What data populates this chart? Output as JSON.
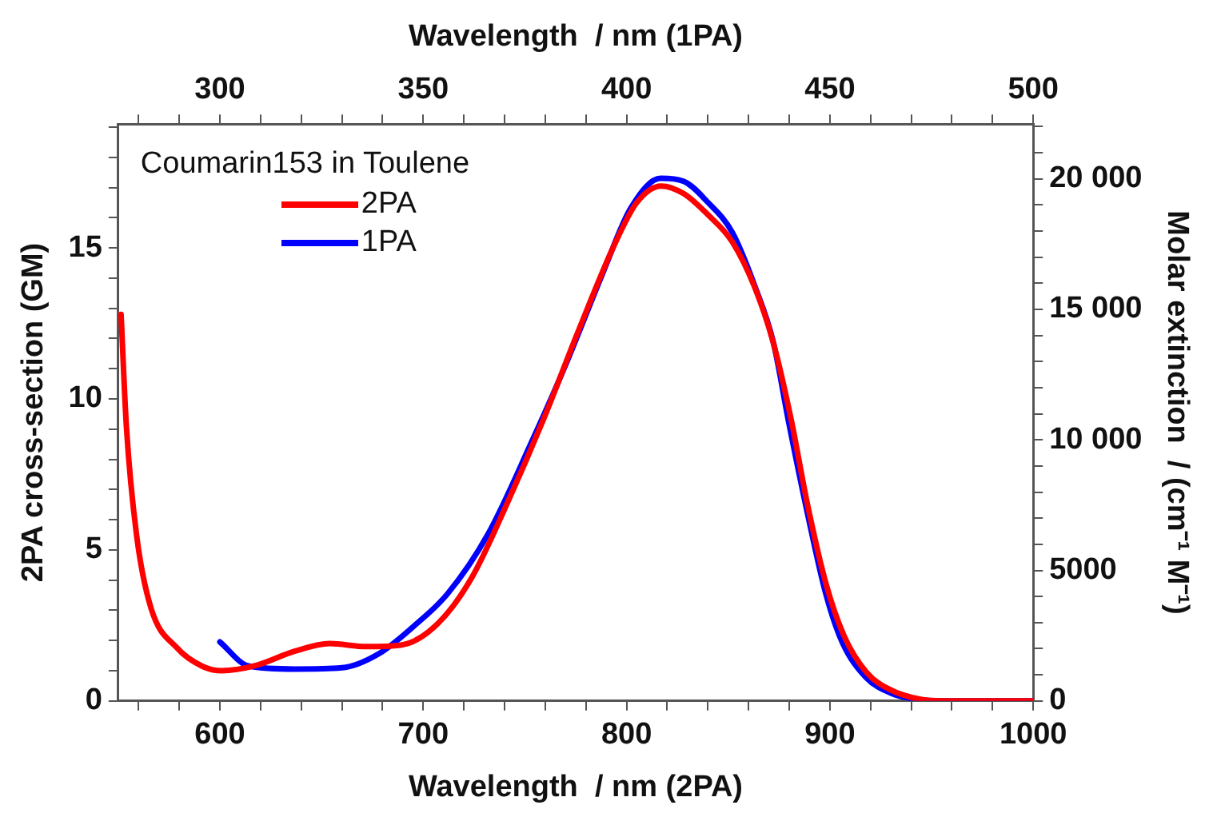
{
  "chart_data": {
    "type": "line",
    "xlabel": "Wavelength  / nm (2PA)",
    "x2label": "Wavelength  / nm (1PA)",
    "ylabel": "2PA cross-section (GM)",
    "y2label": "Molar extinction  / (cm⁻¹ M⁻¹)",
    "legend_title": "Coumarin153 in Toulene",
    "legend": "top left",
    "marker": "none",
    "line_style": "solid",
    "grid": false,
    "xlim": [
      550,
      1000
    ],
    "xticks": [
      {
        "value": 560,
        "label": null
      },
      {
        "value": 580,
        "label": null
      },
      600,
      {
        "value": 620,
        "label": null
      },
      {
        "value": 640,
        "label": null
      },
      {
        "value": 660,
        "label": null
      },
      {
        "value": 680,
        "label": null
      },
      700,
      {
        "value": 720,
        "label": null
      },
      {
        "value": 740,
        "label": null
      },
      {
        "value": 760,
        "label": null
      },
      {
        "value": 780,
        "label": null
      },
      800,
      {
        "value": 820,
        "label": null
      },
      {
        "value": 840,
        "label": null
      },
      {
        "value": 860,
        "label": null
      },
      {
        "value": 880,
        "label": null
      },
      900,
      {
        "value": 920,
        "label": null
      },
      {
        "value": 940,
        "label": null
      },
      {
        "value": 960,
        "label": null
      },
      {
        "value": 980,
        "label": null
      },
      1000
    ],
    "x2lim": [
      275,
      500
    ],
    "x2ticks": [
      {
        "value": 280,
        "label": null
      },
      {
        "value": 290,
        "label": null
      },
      300,
      {
        "value": 310,
        "label": null
      },
      {
        "value": 320,
        "label": null
      },
      {
        "value": 330,
        "label": null
      },
      {
        "value": 340,
        "label": null
      },
      350,
      {
        "value": 360,
        "label": null
      },
      {
        "value": 370,
        "label": null
      },
      {
        "value": 380,
        "label": null
      },
      {
        "value": 390,
        "label": null
      },
      400,
      {
        "value": 410,
        "label": null
      },
      {
        "value": 420,
        "label": null
      },
      {
        "value": 430,
        "label": null
      },
      {
        "value": 440,
        "label": null
      },
      450,
      {
        "value": 460,
        "label": null
      },
      {
        "value": 470,
        "label": null
      },
      {
        "value": 480,
        "label": null
      },
      {
        "value": 490,
        "label": null
      },
      500
    ],
    "ylim": [
      0,
      19.1
    ],
    "yticks": [
      0,
      {
        "value": 1,
        "label": null
      },
      {
        "value": 2,
        "label": null
      },
      {
        "value": 3,
        "label": null
      },
      {
        "value": 4,
        "label": null
      },
      5,
      {
        "value": 6,
        "label": null
      },
      {
        "value": 7,
        "label": null
      },
      {
        "value": 8,
        "label": null
      },
      {
        "value": 9,
        "label": null
      },
      10,
      {
        "value": 11,
        "label": null
      },
      {
        "value": 12,
        "label": null
      },
      {
        "value": 13,
        "label": null
      },
      {
        "value": 14,
        "label": null
      },
      15,
      {
        "value": 16,
        "label": null
      },
      {
        "value": 17,
        "label": null
      },
      {
        "value": 18,
        "label": null
      },
      {
        "value": 19,
        "label": null
      }
    ],
    "y2lim": [
      0,
      22100
    ],
    "y2ticks": [
      0,
      {
        "value": 1000,
        "label": null
      },
      {
        "value": 2000,
        "label": null
      },
      {
        "value": 3000,
        "label": null
      },
      {
        "value": 4000,
        "label": null
      },
      5000,
      {
        "value": 6000,
        "label": null
      },
      {
        "value": 7000,
        "label": null
      },
      {
        "value": 8000,
        "label": null
      },
      {
        "value": 9000,
        "label": null
      },
      {
        "value": 10000,
        "label": "10 000"
      },
      {
        "value": 11000,
        "label": null
      },
      {
        "value": 12000,
        "label": null
      },
      {
        "value": 13000,
        "label": null
      },
      {
        "value": 14000,
        "label": null
      },
      {
        "value": 15000,
        "label": "15 000"
      },
      {
        "value": 16000,
        "label": null
      },
      {
        "value": 17000,
        "label": null
      },
      {
        "value": 18000,
        "label": null
      },
      {
        "value": 19000,
        "label": null
      },
      {
        "value": 20000,
        "label": "20 000"
      },
      {
        "value": 21000,
        "label": null
      },
      {
        "value": 22000,
        "label": null
      }
    ],
    "series": [
      {
        "name": "2PA",
        "color": "#ff0000",
        "x": [
          551.4,
          554,
          559,
          566,
          579,
          591,
          601,
          617,
          637,
          654,
          672,
          689,
          707,
          724,
          741,
          759,
          776,
          794,
          805,
          817,
          828,
          840,
          852,
          863,
          872,
          881,
          889,
          898,
          907,
          918,
          930,
          944,
          956,
          1000
        ],
        "values": [
          12.8,
          9.1,
          5.5,
          3.1,
          1.75,
          1.16,
          1.0,
          1.16,
          1.65,
          1.9,
          1.8,
          1.85,
          2.55,
          4.1,
          6.5,
          9.3,
          12.2,
          15.1,
          16.5,
          17.05,
          16.8,
          16.1,
          15.2,
          13.7,
          11.9,
          9.3,
          6.5,
          3.9,
          2.15,
          0.95,
          0.36,
          0.06,
          0,
          0
        ]
      },
      {
        "name": "1PA",
        "color": "#0000ff",
        "axis": "y2",
        "x": [
          600,
          614,
          637,
          660,
          678,
          695,
          712,
          732,
          753,
          770,
          788,
          802,
          816.8,
          828,
          840,
          852,
          863.2,
          872,
          880,
          889.2,
          898,
          906,
          918,
          930,
          941.4,
          956,
          1000
        ],
        "values": [
          2260,
          1340,
          1220,
          1270,
          1800,
          2840,
          4110,
          6410,
          9870,
          12870,
          16330,
          18870,
          20020,
          19910,
          19100,
          17950,
          15870,
          13800,
          10570,
          7100,
          4100,
          2260,
          880,
          300,
          70,
          0,
          0
        ]
      }
    ]
  }
}
